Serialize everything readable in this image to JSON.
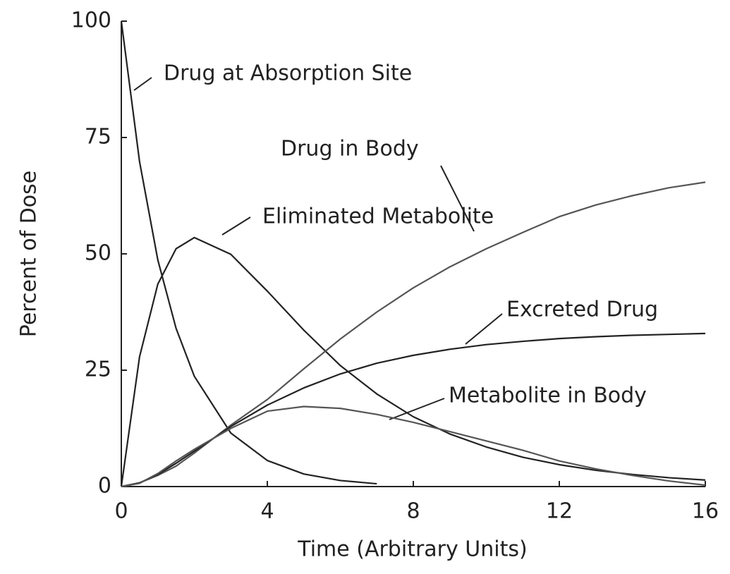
{
  "chart_data": {
    "type": "line",
    "xlabel": "Time (Arbitrary Units)",
    "ylabel": "Percent of Dose",
    "x": [
      0,
      0.5,
      1,
      1.5,
      2,
      3,
      4,
      5,
      6,
      7,
      8,
      9,
      10,
      11,
      12,
      13,
      14,
      15,
      16
    ],
    "series": [
      {
        "name": "Drug at Absorption Site",
        "color": "#222222",
        "values": [
          100,
          69.8,
          48.7,
          34.0,
          23.7,
          11.5,
          5.6,
          2.7,
          1.3,
          0.6,
          null,
          null,
          null,
          null,
          null,
          null,
          null,
          null,
          null
        ]
      },
      {
        "name": "Drug in Body",
        "color": "#222222",
        "values": [
          0,
          27.9,
          43.5,
          51.1,
          53.5,
          49.9,
          42.0,
          33.6,
          26.0,
          19.9,
          15.0,
          11.3,
          8.5,
          6.3,
          4.7,
          3.5,
          2.6,
          1.9,
          1.4
        ]
      },
      {
        "name": "Eliminated Metabolite",
        "color": "#555555",
        "values": [
          0,
          0.8,
          2.4,
          4.4,
          7.2,
          13.2,
          18.7,
          25.3,
          31.7,
          37.5,
          42.7,
          47.2,
          51.1,
          54.6,
          58.0,
          60.5,
          62.5,
          64.2,
          65.4
        ]
      },
      {
        "name": "Excreted Drug",
        "color": "#222222",
        "values": [
          0,
          0.8,
          2.6,
          5.0,
          7.6,
          12.9,
          17.5,
          21.2,
          24.2,
          26.5,
          28.2,
          29.5,
          30.5,
          31.2,
          31.8,
          32.2,
          32.5,
          32.7,
          32.9
        ]
      },
      {
        "name": "Metabolite in Body",
        "color": "#555555",
        "values": [
          0,
          0.7,
          2.8,
          5.5,
          8.0,
          12.5,
          16.2,
          17.2,
          16.8,
          15.5,
          13.8,
          11.8,
          9.8,
          7.8,
          5.5,
          3.8,
          2.4,
          1.2,
          0.3
        ]
      }
    ],
    "xlim": [
      0,
      16
    ],
    "xticks": [
      0,
      4,
      8,
      12,
      16
    ],
    "ylim": [
      0,
      100
    ],
    "yticks": [
      0,
      25,
      50,
      75,
      100
    ],
    "grid": false
  }
}
